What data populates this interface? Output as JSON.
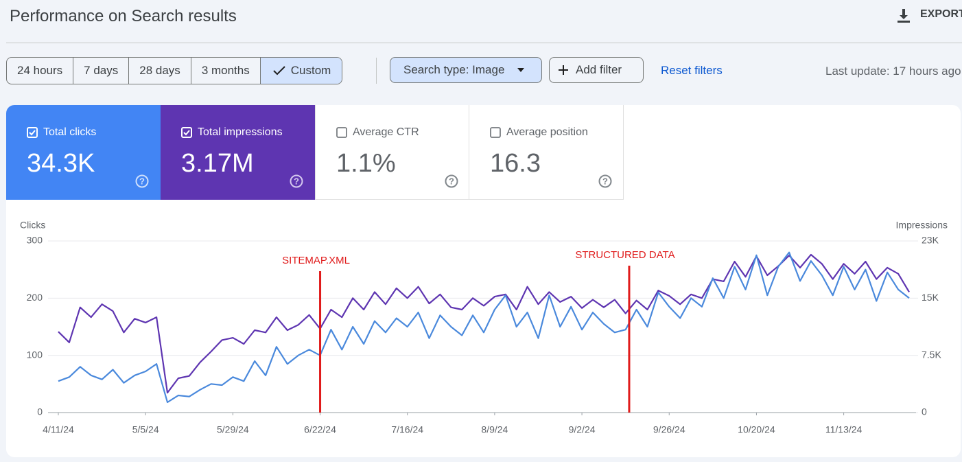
{
  "header": {
    "title": "Performance on Search results",
    "export": "EXPORT"
  },
  "filters": {
    "date_ranges": [
      "24 hours",
      "7 days",
      "28 days",
      "3 months",
      "Custom"
    ],
    "search_type": "Search type: Image",
    "add_filter": "Add filter",
    "reset": "Reset filters",
    "last_update": "Last update: 17 hours ago"
  },
  "metrics": [
    {
      "label": "Total clicks",
      "value": "34.3K"
    },
    {
      "label": "Total impressions",
      "value": "3.17M"
    },
    {
      "label": "Average CTR",
      "value": "1.1%"
    },
    {
      "label": "Average position",
      "value": "16.3"
    }
  ],
  "chart_data": {
    "type": "line",
    "x": [
      "4/11/24",
      "4/14/24",
      "4/17/24",
      "4/20/24",
      "4/23/24",
      "4/26/24",
      "4/29/24",
      "5/2/24",
      "5/5/24",
      "5/8/24",
      "5/11/24",
      "5/14/24",
      "5/17/24",
      "5/20/24",
      "5/23/24",
      "5/26/24",
      "5/29/24",
      "6/1/24",
      "6/4/24",
      "6/7/24",
      "6/10/24",
      "6/13/24",
      "6/16/24",
      "6/19/24",
      "6/22/24",
      "6/25/24",
      "6/28/24",
      "7/1/24",
      "7/4/24",
      "7/7/24",
      "7/10/24",
      "7/13/24",
      "7/16/24",
      "7/19/24",
      "7/22/24",
      "7/25/24",
      "7/28/24",
      "7/31/24",
      "8/3/24",
      "8/6/24",
      "8/9/24",
      "8/12/24",
      "8/15/24",
      "8/18/24",
      "8/21/24",
      "8/24/24",
      "8/27/24",
      "8/30/24",
      "9/2/24",
      "9/5/24",
      "9/8/24",
      "9/11/24",
      "9/14/24",
      "9/17/24",
      "9/20/24",
      "9/23/24",
      "9/26/24",
      "9/29/24",
      "10/2/24",
      "10/5/24",
      "10/8/24",
      "10/11/24",
      "10/14/24",
      "10/17/24",
      "10/20/24",
      "10/23/24",
      "10/26/24",
      "10/29/24",
      "11/1/24",
      "11/4/24",
      "11/7/24",
      "11/10/24",
      "11/13/24",
      "11/16/24",
      "11/19/24",
      "11/22/24",
      "11/25/24",
      "11/28/24",
      "12/1/24"
    ],
    "series": [
      {
        "name": "Clicks",
        "color": "#4a89dc",
        "values": [
          55,
          62,
          80,
          65,
          58,
          75,
          52,
          65,
          72,
          85,
          18,
          30,
          28,
          40,
          50,
          48,
          62,
          55,
          90,
          65,
          115,
          85,
          100,
          110,
          100,
          145,
          110,
          150,
          120,
          160,
          140,
          165,
          150,
          175,
          130,
          170,
          150,
          135,
          170,
          140,
          180,
          205,
          150,
          175,
          130,
          205,
          150,
          185,
          145,
          175,
          155,
          140,
          145,
          180,
          150,
          210,
          185,
          165,
          200,
          185,
          235,
          200,
          255,
          215,
          275,
          205,
          255,
          280,
          230,
          265,
          240,
          205,
          255,
          215,
          250,
          195,
          245,
          215,
          200
        ]
      },
      {
        "name": "Impressions",
        "color": "#5e35b1",
        "axis": "y2",
        "values": [
          10600,
          9200,
          13800,
          12500,
          14200,
          13300,
          10500,
          12300,
          11800,
          12500,
          2600,
          4500,
          4800,
          6600,
          8000,
          9500,
          9800,
          9000,
          10800,
          10500,
          12500,
          10800,
          11500,
          12800,
          11000,
          13500,
          12500,
          15000,
          13500,
          15800,
          14200,
          16300,
          15000,
          16500,
          14300,
          15500,
          13800,
          13500,
          15000,
          14000,
          15200,
          15500,
          13500,
          16500,
          14200,
          15800,
          14500,
          15200,
          13700,
          14800,
          13800,
          14800,
          13000,
          14700,
          13500,
          16000,
          15300,
          14200,
          15500,
          15000,
          17500,
          17200,
          19800,
          17800,
          20500,
          18000,
          19200,
          20600,
          19000,
          20700,
          19500,
          17500,
          19500,
          18200,
          19800,
          17500,
          19000,
          18200,
          15800
        ]
      }
    ],
    "ylim": [
      0,
      300
    ],
    "yticks": [
      0,
      100,
      200,
      300
    ],
    "y2lim": [
      0,
      22500
    ],
    "y2ticks": [
      0,
      {
        "value": 7500,
        "label": "7.5K"
      },
      {
        "value": 15000,
        "label": "15K"
      },
      {
        "value": 22500,
        "label": "23K"
      }
    ],
    "xticks": [
      "4/11/24",
      "5/5/24",
      "5/29/24",
      "6/22/24",
      "7/16/24",
      "8/9/24",
      "9/2/24",
      "9/26/24",
      "10/20/24",
      "11/13/24"
    ],
    "grid": true,
    "annotations": [
      {
        "text": "SITEMAP.XML",
        "x": "6/22/24",
        "color": "#e01b1b"
      },
      {
        "text": "STRUCTURED DATA",
        "x": "9/15/24",
        "color": "#e01b1b"
      }
    ]
  }
}
